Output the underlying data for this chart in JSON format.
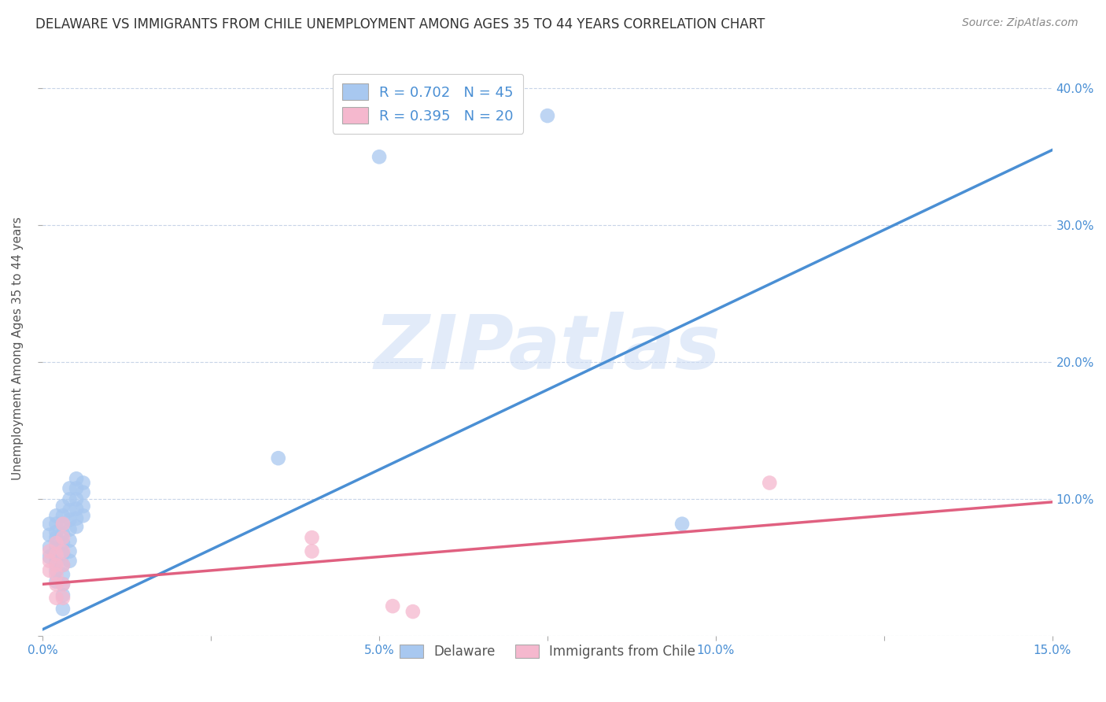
{
  "title": "DELAWARE VS IMMIGRANTS FROM CHILE UNEMPLOYMENT AMONG AGES 35 TO 44 YEARS CORRELATION CHART",
  "source": "Source: ZipAtlas.com",
  "ylabel": "Unemployment Among Ages 35 to 44 years",
  "x_min": 0.0,
  "x_max": 0.15,
  "y_min": 0.0,
  "y_max": 0.42,
  "x_ticks": [
    0.0,
    0.025,
    0.05,
    0.075,
    0.1,
    0.125,
    0.15
  ],
  "x_tick_labels": [
    "0.0%",
    "",
    "5.0%",
    "",
    "10.0%",
    "",
    "15.0%"
  ],
  "y_ticks": [
    0.0,
    0.1,
    0.2,
    0.3,
    0.4
  ],
  "y_tick_labels_right": [
    "",
    "10.0%",
    "20.0%",
    "30.0%",
    "40.0%"
  ],
  "watermark": "ZIPatlas",
  "legend_R1": "R = 0.702",
  "legend_N1": "N = 45",
  "legend_R2": "R = 0.395",
  "legend_N2": "N = 20",
  "blue_color": "#a8c8f0",
  "pink_color": "#f5b8ce",
  "blue_line_color": "#4a8fd4",
  "pink_line_color": "#e06080",
  "blue_scatter": [
    [
      0.001,
      0.074
    ],
    [
      0.001,
      0.082
    ],
    [
      0.001,
      0.065
    ],
    [
      0.001,
      0.058
    ],
    [
      0.002,
      0.072
    ],
    [
      0.002,
      0.065
    ],
    [
      0.002,
      0.055
    ],
    [
      0.002,
      0.048
    ],
    [
      0.002,
      0.04
    ],
    [
      0.002,
      0.088
    ],
    [
      0.002,
      0.082
    ],
    [
      0.002,
      0.076
    ],
    [
      0.003,
      0.095
    ],
    [
      0.003,
      0.088
    ],
    [
      0.003,
      0.082
    ],
    [
      0.003,
      0.075
    ],
    [
      0.003,
      0.068
    ],
    [
      0.003,
      0.06
    ],
    [
      0.003,
      0.052
    ],
    [
      0.003,
      0.045
    ],
    [
      0.003,
      0.038
    ],
    [
      0.003,
      0.03
    ],
    [
      0.003,
      0.02
    ],
    [
      0.004,
      0.108
    ],
    [
      0.004,
      0.1
    ],
    [
      0.004,
      0.092
    ],
    [
      0.004,
      0.085
    ],
    [
      0.004,
      0.078
    ],
    [
      0.004,
      0.07
    ],
    [
      0.004,
      0.062
    ],
    [
      0.004,
      0.055
    ],
    [
      0.005,
      0.115
    ],
    [
      0.005,
      0.108
    ],
    [
      0.005,
      0.1
    ],
    [
      0.005,
      0.093
    ],
    [
      0.005,
      0.086
    ],
    [
      0.005,
      0.08
    ],
    [
      0.006,
      0.112
    ],
    [
      0.006,
      0.105
    ],
    [
      0.006,
      0.095
    ],
    [
      0.006,
      0.088
    ],
    [
      0.035,
      0.13
    ],
    [
      0.05,
      0.35
    ],
    [
      0.075,
      0.38
    ],
    [
      0.095,
      0.082
    ]
  ],
  "pink_scatter": [
    [
      0.001,
      0.062
    ],
    [
      0.001,
      0.055
    ],
    [
      0.001,
      0.048
    ],
    [
      0.002,
      0.068
    ],
    [
      0.002,
      0.06
    ],
    [
      0.002,
      0.052
    ],
    [
      0.002,
      0.045
    ],
    [
      0.002,
      0.038
    ],
    [
      0.002,
      0.028
    ],
    [
      0.003,
      0.082
    ],
    [
      0.003,
      0.072
    ],
    [
      0.003,
      0.062
    ],
    [
      0.003,
      0.052
    ],
    [
      0.003,
      0.038
    ],
    [
      0.003,
      0.028
    ],
    [
      0.04,
      0.072
    ],
    [
      0.04,
      0.062
    ],
    [
      0.052,
      0.022
    ],
    [
      0.055,
      0.018
    ],
    [
      0.108,
      0.112
    ]
  ],
  "blue_line_x": [
    0.0,
    0.15
  ],
  "blue_line_y": [
    0.005,
    0.355
  ],
  "pink_line_x": [
    0.0,
    0.15
  ],
  "pink_line_y": [
    0.038,
    0.098
  ],
  "background_color": "#ffffff",
  "grid_color": "#c8d4e8",
  "title_color": "#333333",
  "watermark_color": "#d0dff5",
  "watermark_alpha": 0.6
}
